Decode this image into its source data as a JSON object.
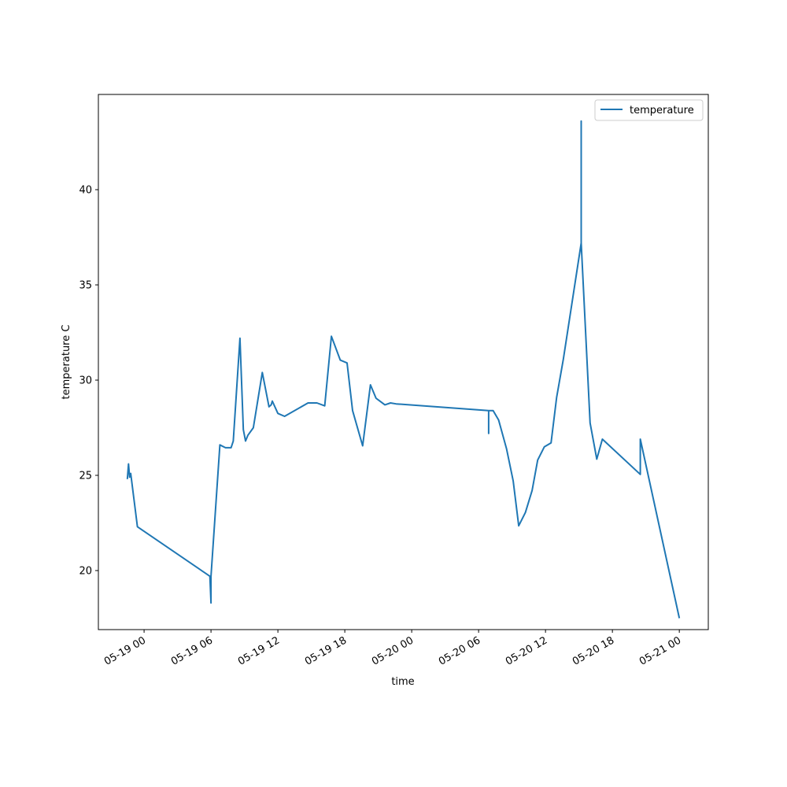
{
  "chart_data": {
    "type": "line",
    "xlabel": "time",
    "ylabel": "temperature C",
    "x_scale": "time",
    "xlim": [
      "2018-05-18 19:54",
      "2018-05-21 02:36"
    ],
    "ylim": [
      16.9,
      45.0
    ],
    "y_ticks": [
      20,
      25,
      30,
      35,
      40
    ],
    "x_ticks": [
      {
        "value": "2018-05-19 00:00",
        "label": "05-19 00"
      },
      {
        "value": "2018-05-19 06:00",
        "label": "05-19 06"
      },
      {
        "value": "2018-05-19 12:00",
        "label": "05-19 12"
      },
      {
        "value": "2018-05-19 18:00",
        "label": "05-19 18"
      },
      {
        "value": "2018-05-20 00:00",
        "label": "05-20 00"
      },
      {
        "value": "2018-05-20 06:00",
        "label": "05-20 06"
      },
      {
        "value": "2018-05-20 12:00",
        "label": "05-20 12"
      },
      {
        "value": "2018-05-20 18:00",
        "label": "05-20 18"
      },
      {
        "value": "2018-05-21 00:00",
        "label": "05-21 00"
      }
    ],
    "legend": {
      "position": "upper-right"
    },
    "grid": false,
    "series": [
      {
        "name": "temperature",
        "color": "#1f77b4",
        "x": [
          "2018-05-18 22:30",
          "2018-05-18 22:36",
          "2018-05-18 22:42",
          "2018-05-18 22:48",
          "2018-05-18 23:24",
          "2018-05-19 05:54",
          "2018-05-19 06:00",
          "2018-05-19 06:00",
          "2018-05-19 06:48",
          "2018-05-19 07:18",
          "2018-05-19 07:48",
          "2018-05-19 08:00",
          "2018-05-19 08:36",
          "2018-05-19 08:54",
          "2018-05-19 09:06",
          "2018-05-19 09:18",
          "2018-05-19 09:48",
          "2018-05-19 10:36",
          "2018-05-19 11:12",
          "2018-05-19 11:24",
          "2018-05-19 11:30",
          "2018-05-19 12:00",
          "2018-05-19 12:36",
          "2018-05-19 14:42",
          "2018-05-19 15:30",
          "2018-05-19 16:12",
          "2018-05-19 16:48",
          "2018-05-19 17:36",
          "2018-05-19 18:12",
          "2018-05-19 18:42",
          "2018-05-19 19:36",
          "2018-05-19 20:18",
          "2018-05-19 20:48",
          "2018-05-19 21:36",
          "2018-05-19 22:06",
          "2018-05-19 22:36",
          "2018-05-20 06:54",
          "2018-05-20 06:54",
          "2018-05-20 06:54",
          "2018-05-20 07:18",
          "2018-05-20 07:48",
          "2018-05-20 08:30",
          "2018-05-20 09:06",
          "2018-05-20 09:36",
          "2018-05-20 10:12",
          "2018-05-20 10:48",
          "2018-05-20 11:18",
          "2018-05-20 11:54",
          "2018-05-20 12:30",
          "2018-05-20 13:00",
          "2018-05-20 13:36",
          "2018-05-20 15:12",
          "2018-05-20 15:12",
          "2018-05-20 15:12",
          "2018-05-20 16:00",
          "2018-05-20 16:36",
          "2018-05-20 17:06",
          "2018-05-20 20:30",
          "2018-05-20 20:30",
          "2018-05-21 00:00"
        ],
        "y": [
          24.8,
          25.6,
          24.9,
          25.1,
          22.3,
          19.7,
          18.3,
          19.7,
          26.6,
          26.45,
          26.45,
          26.8,
          32.2,
          27.4,
          26.8,
          27.1,
          27.5,
          30.4,
          28.6,
          28.7,
          28.9,
          28.25,
          28.1,
          28.8,
          28.8,
          28.65,
          32.3,
          31.05,
          30.9,
          28.4,
          26.55,
          29.75,
          29.05,
          28.7,
          28.8,
          28.75,
          28.4,
          27.2,
          28.4,
          28.4,
          27.9,
          26.4,
          24.7,
          22.35,
          23.05,
          24.2,
          25.8,
          26.5,
          26.7,
          29.1,
          31.1,
          37.2,
          43.6,
          37.2,
          27.75,
          25.85,
          26.9,
          25.05,
          26.9,
          17.5
        ]
      }
    ]
  }
}
